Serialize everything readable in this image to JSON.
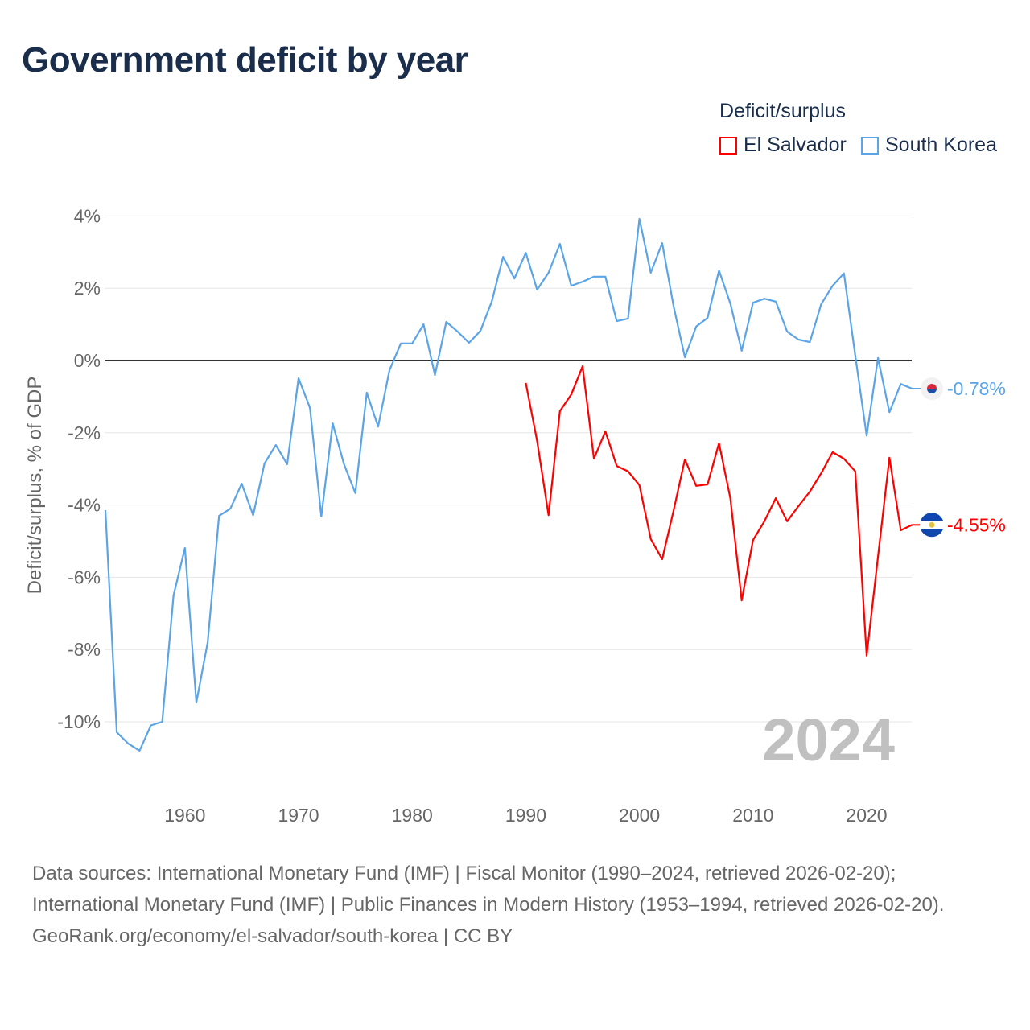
{
  "title": "Government deficit by year",
  "legend": {
    "title": "Deficit/surplus",
    "items": [
      {
        "label": "El Salvador",
        "color": "#ff0000"
      },
      {
        "label": "South Korea",
        "color": "#5ba4e6"
      }
    ]
  },
  "chart_data": {
    "type": "line",
    "title": "Government deficit by year",
    "xlabel": "",
    "ylabel": "Deficit/surplus, % of GDP",
    "xlim": [
      1953,
      2024
    ],
    "ylim": [
      -11,
      4.3
    ],
    "yticks": [
      4,
      2,
      0,
      -2,
      -4,
      -6,
      -8,
      -10
    ],
    "ytick_labels": [
      "4%",
      "2%",
      "0%",
      "-2%",
      "-4%",
      "-6%",
      "-8%",
      "-10%"
    ],
    "xticks": [
      1960,
      1970,
      1980,
      1990,
      2000,
      2010,
      2020
    ],
    "xtick_labels": [
      "1960",
      "1970",
      "1980",
      "1990",
      "2000",
      "2010",
      "2020"
    ],
    "grid": true,
    "legend_position": "top-right",
    "watermark_year": "2024",
    "series": [
      {
        "name": "South Korea",
        "color": "#5ba4e6",
        "end_label": "-0.78%",
        "start_year": 1953,
        "values": [
          -4.14,
          -10.29,
          -10.6,
          -10.8,
          -10.1,
          -10.0,
          -6.5,
          -5.19,
          -9.47,
          -7.8,
          -4.3,
          -4.1,
          -3.41,
          -4.28,
          -2.85,
          -2.34,
          -2.87,
          -0.49,
          -1.31,
          -4.32,
          -1.74,
          -2.87,
          -3.67,
          -0.89,
          -1.83,
          -0.27,
          0.47,
          0.47,
          1.0,
          -0.4,
          1.07,
          0.8,
          0.49,
          0.82,
          1.63,
          2.87,
          2.27,
          2.98,
          1.96,
          2.43,
          3.23,
          2.07,
          2.18,
          2.32,
          2.32,
          1.09,
          1.16,
          3.92,
          2.43,
          3.25,
          1.51,
          0.09,
          0.94,
          1.18,
          2.49,
          1.58,
          0.27,
          1.6,
          1.71,
          1.63,
          0.8,
          0.58,
          0.51,
          1.56,
          2.07,
          2.41,
          0.13,
          -2.08,
          0.07,
          -1.43,
          -0.65,
          -0.78
        ]
      },
      {
        "name": "El Salvador",
        "color": "#ff0000",
        "end_label": "-4.55%",
        "start_year": 1990,
        "values": [
          -0.62,
          -2.23,
          -4.28,
          -1.4,
          -0.94,
          -0.16,
          -2.72,
          -1.96,
          -2.92,
          -3.07,
          -3.45,
          -4.94,
          -5.5,
          -4.16,
          -2.74,
          -3.47,
          -3.43,
          -2.29,
          -3.81,
          -6.64,
          -4.97,
          -4.45,
          -3.81,
          -4.45,
          -4.03,
          -3.63,
          -3.12,
          -2.54,
          -2.72,
          -3.07,
          -8.17,
          -5.43,
          -2.69,
          -4.7,
          -4.55
        ]
      }
    ]
  },
  "footer": {
    "sources": "Data sources: International Monetary Fund (IMF) | Fiscal Monitor (1990–2024, retrieved 2026-02-20); International Monetary Fund (IMF) | Public Finances in Modern History (1953–1994, retrieved 2026-02-20).",
    "credit": "GeoRank.org/economy/el-salvador/south-korea | CC BY"
  }
}
